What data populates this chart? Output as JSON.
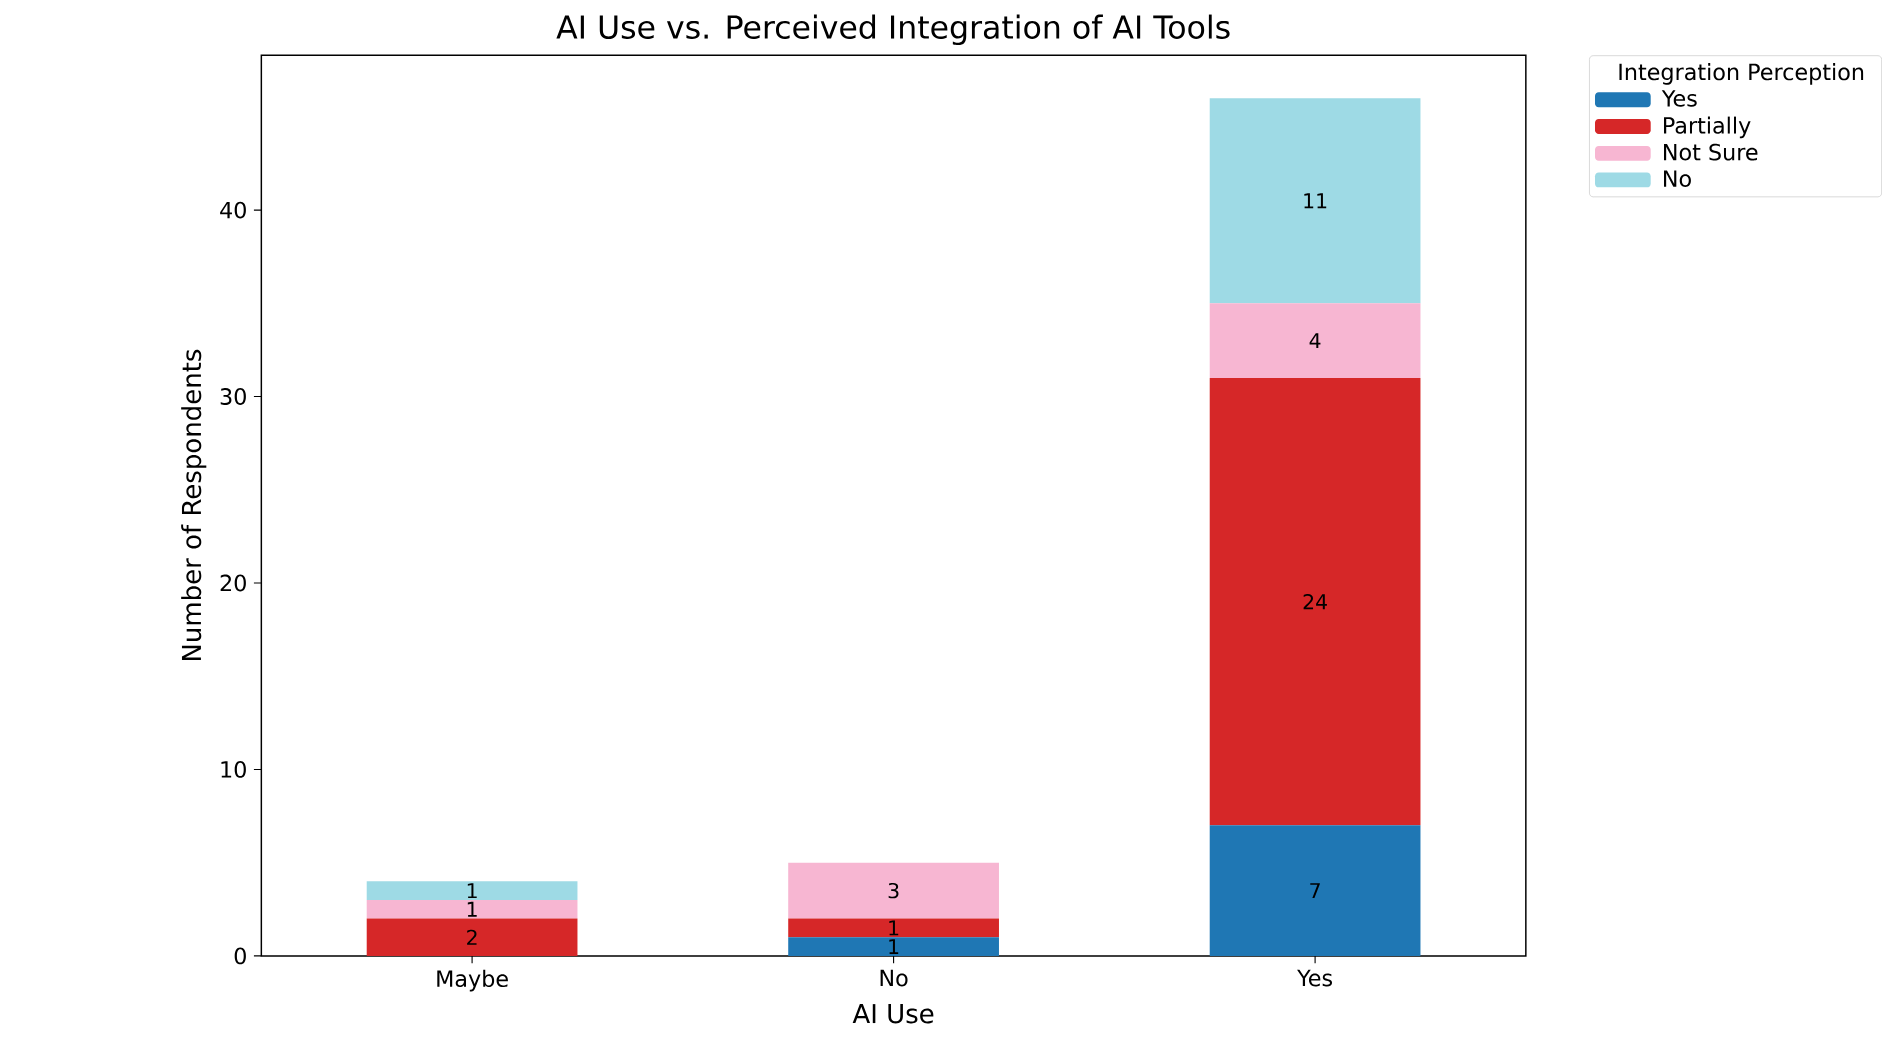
{
  "chart_data": {
    "type": "bar",
    "stacked": true,
    "title": "AI Use vs. Perceived Integration of AI Tools",
    "xlabel": "AI Use",
    "ylabel": "Number of Respondents",
    "legend_title": "Integration Perception",
    "legend": "top right",
    "categories": [
      "Maybe",
      "No",
      "Yes"
    ],
    "ylim": [
      0,
      48.3
    ],
    "yticks": [
      0,
      10,
      20,
      30,
      40
    ],
    "series": [
      {
        "name": "Yes",
        "color": "#1f77b4",
        "values": [
          0,
          1,
          7
        ],
        "value_labels": [
          null,
          "1",
          "7"
        ]
      },
      {
        "name": "Partially",
        "color": "#d62728",
        "values": [
          2,
          1,
          24
        ],
        "value_labels": [
          "2",
          "1",
          "24"
        ]
      },
      {
        "name": "Not Sure",
        "color": "#f7b6d2",
        "values": [
          1,
          3,
          4
        ],
        "value_labels": [
          "1",
          "3",
          "4"
        ]
      },
      {
        "name": "No",
        "color": "#9edae5",
        "values": [
          1,
          0,
          11
        ],
        "value_labels": [
          "1",
          null,
          "11"
        ]
      }
    ]
  }
}
